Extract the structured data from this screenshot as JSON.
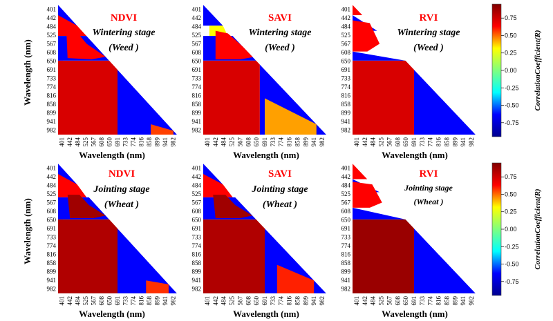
{
  "chart_data": {
    "type": "heatmap",
    "wavelength_ticks": [
      "401",
      "442",
      "484",
      "525",
      "567",
      "608",
      "650",
      "691",
      "733",
      "774",
      "816",
      "858",
      "899",
      "941",
      "982"
    ],
    "xlabel": "Wavelength (nm)",
    "ylabel": "Wavelength (nm)",
    "colorbar": {
      "label": "CorrelationCoefficient(R)",
      "range": [
        -0.95,
        0.95
      ],
      "ticks": [
        "0.75",
        "0.50",
        "0.25",
        "0.00",
        "-0.25",
        "-0.50",
        "-0.75"
      ],
      "tick_values": [
        0.75,
        0.5,
        0.25,
        0.0,
        -0.25,
        -0.5,
        -0.75
      ],
      "colormap": [
        "#00008f",
        "#0000ff",
        "#00ffff",
        "#7fff7f",
        "#ffff00",
        "#ff0000",
        "#800000"
      ]
    },
    "panels": [
      {
        "index": "NDVI",
        "stage": "Wintering stage",
        "crop": "(Weed )"
      },
      {
        "index": "SAVI",
        "stage": "Wintering stage",
        "crop": "(Weed )"
      },
      {
        "index": "RVI",
        "stage": "Wintering stage",
        "crop": "(Weed )"
      },
      {
        "index": "NDVI",
        "stage": "Jointing stage",
        "crop": "(Wheat )"
      },
      {
        "index": "SAVI",
        "stage": "Jointing stage",
        "crop": "(Wheat )"
      },
      {
        "index": "RVI",
        "stage": "Jointing stage",
        "crop": "(Wheat )"
      }
    ]
  }
}
